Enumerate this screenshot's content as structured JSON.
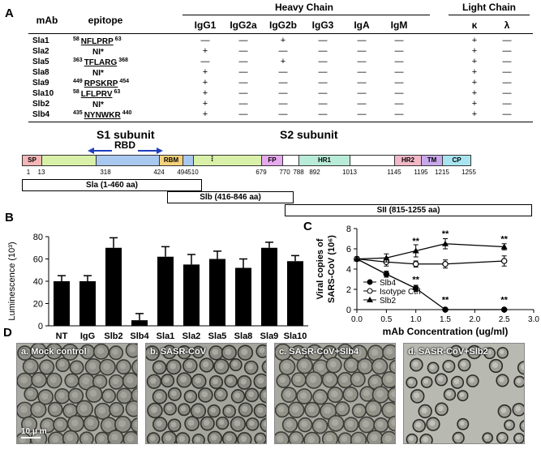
{
  "panels": {
    "a": "A",
    "b": "B",
    "c": "C",
    "d": "D"
  },
  "table": {
    "col_mab": "mAb",
    "col_epitope": "epitope",
    "group_heavy": "Heavy Chain",
    "group_light": "Light Chain",
    "isotypes": [
      "IgG1",
      "IgG2a",
      "IgG2b",
      "IgG3",
      "IgA",
      "IgM"
    ],
    "light": [
      "κ",
      "λ"
    ],
    "rows": [
      {
        "mab": "Sla1",
        "ep_start": "58",
        "ep_seq": "NFLPRP",
        "ep_end": "63",
        "vals": [
          "—",
          "—",
          "+",
          "—",
          "—",
          "—",
          "+",
          "—"
        ]
      },
      {
        "mab": "Sla2",
        "ep_start": "",
        "ep_seq": "NI*",
        "ep_end": "",
        "vals": [
          "+",
          "—",
          "—",
          "—",
          "—",
          "—",
          "+",
          "—"
        ]
      },
      {
        "mab": "Sla5",
        "ep_start": "363",
        "ep_seq": "TFLARG",
        "ep_end": "368",
        "vals": [
          "—",
          "—",
          "+",
          "—",
          "—",
          "—",
          "+",
          "—"
        ]
      },
      {
        "mab": "Sla8",
        "ep_start": "",
        "ep_seq": "NI*",
        "ep_end": "",
        "vals": [
          "+",
          "—",
          "—",
          "—",
          "—",
          "—",
          "+",
          "—"
        ]
      },
      {
        "mab": "Sla9",
        "ep_start": "449",
        "ep_seq": "RPSKRP",
        "ep_end": "454",
        "vals": [
          "+",
          "—",
          "—",
          "—",
          "—",
          "—",
          "+",
          "—"
        ]
      },
      {
        "mab": "Sla10",
        "ep_start": "58",
        "ep_seq": "LFLPRV",
        "ep_end": "63",
        "vals": [
          "+",
          "—",
          "—",
          "—",
          "—",
          "—",
          "+",
          "—"
        ]
      },
      {
        "mab": "Slb2",
        "ep_start": "",
        "ep_seq": "NI*",
        "ep_end": "",
        "vals": [
          "+",
          "—",
          "—",
          "—",
          "—",
          "—",
          "+",
          "—"
        ]
      },
      {
        "mab": "Slb4",
        "ep_start": "435",
        "ep_seq": "NYNWKR",
        "ep_end": "440",
        "vals": [
          "+",
          "—",
          "—",
          "—",
          "—",
          "—",
          "+",
          "—"
        ]
      }
    ]
  },
  "schematic": {
    "s1_label": "S1 subunit",
    "s2_label": "S2 subunit",
    "rbd_label": "RBD",
    "domains": [
      {
        "label": "SP",
        "color": "#f4b6b6"
      },
      {
        "label": "",
        "color": "#d8f0a8"
      },
      {
        "label": "",
        "color": "#a8c8f0"
      },
      {
        "label": "RBM",
        "color": "#f5d27a"
      },
      {
        "label": "",
        "color": "#a8c8f0"
      },
      {
        "label": "",
        "color": "#d8f0a8"
      },
      {
        "label": "FP",
        "color": "#e6a8ee"
      },
      {
        "label": "",
        "color": "#ffffff"
      },
      {
        "label": "HR1",
        "color": "#b8ecd8"
      },
      {
        "label": "",
        "color": "#ffffff"
      },
      {
        "label": "HR2",
        "color": "#f2b8c8"
      },
      {
        "label": "TM",
        "color": "#c8a8ec"
      },
      {
        "label": "CP",
        "color": "#a8e4f0"
      }
    ],
    "ticks": [
      "1",
      "13",
      "318",
      "424",
      "494",
      "510",
      "679",
      "770",
      "788",
      "892",
      "1013",
      "1145",
      "1195",
      "1215",
      "1255"
    ],
    "fragments": [
      "Sla (1-460 aa)",
      "Slb (416-846 aa)",
      "SII (815-1255 aa)"
    ]
  },
  "chart_data": [
    {
      "type": "bar",
      "panel": "B",
      "categories": [
        "NT",
        "IgG",
        "Slb2",
        "Slb4",
        "Sla1",
        "Sla2",
        "Sla5",
        "Sla8",
        "Sla9",
        "Sla10"
      ],
      "values": [
        40,
        40,
        70,
        5,
        62,
        55,
        60,
        52,
        70,
        58
      ],
      "errors": [
        5,
        5,
        9,
        6,
        9,
        9,
        7,
        8,
        5,
        5
      ],
      "ylabel": "Luminescence (10³)",
      "ylim": [
        0,
        80
      ],
      "yticks": [
        "0",
        "20",
        "40",
        "60",
        "80"
      ],
      "bar_color": "#000000"
    },
    {
      "type": "line",
      "panel": "C",
      "xlabel": "mAb Concentration (ug/ml)",
      "ylabel": "Viral copies of SARS-CoV (10⁶)",
      "xlim": [
        0,
        3
      ],
      "ylim": [
        0,
        8
      ],
      "xticks": [
        "0.0",
        "0.5",
        "1.0",
        "1.5",
        "2.0",
        "2.5",
        "3.0"
      ],
      "yticks": [
        "0",
        "2",
        "4",
        "6",
        "8"
      ],
      "significance": "**",
      "series": [
        {
          "name": "Slb4",
          "marker": "filled-circle",
          "x": [
            0,
            0.5,
            1.0,
            1.5,
            2.5
          ],
          "y": [
            5.0,
            3.5,
            2.1,
            0,
            0
          ],
          "err": [
            0.2,
            0.3,
            0.3,
            0.1,
            0.1
          ]
        },
        {
          "name": "Isotype Ctrl",
          "marker": "open-circle",
          "x": [
            0,
            0.5,
            1.0,
            1.5,
            2.5
          ],
          "y": [
            5.0,
            4.7,
            4.5,
            4.5,
            4.8
          ],
          "err": [
            0.2,
            0.4,
            0.3,
            0.4,
            0.5
          ]
        },
        {
          "name": "Slb2",
          "marker": "filled-triangle",
          "x": [
            0,
            0.5,
            1.0,
            1.5,
            2.5
          ],
          "y": [
            5.0,
            5.1,
            5.8,
            6.5,
            6.2
          ],
          "err": [
            0.2,
            0.4,
            0.6,
            0.5,
            0.3
          ]
        }
      ]
    }
  ],
  "micrographs": {
    "labels": [
      "a. Mock control",
      "b. SASR-CoV",
      "c. SASR-CoV+Slb4",
      "d. SASR-CoV+Slb2"
    ],
    "scale_bar": "10 μ m"
  }
}
